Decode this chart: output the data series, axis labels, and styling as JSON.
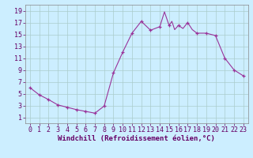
{
  "x": [
    0,
    1,
    2,
    3,
    4,
    5,
    6,
    7,
    8,
    9,
    10,
    11,
    12,
    13,
    14,
    14.5,
    15,
    15.3,
    15.6,
    16,
    16.5,
    17,
    17.5,
    18,
    19,
    20,
    21,
    22,
    23
  ],
  "y": [
    6.0,
    4.8,
    4.0,
    3.1,
    2.7,
    2.3,
    2.0,
    1.7,
    2.9,
    8.5,
    12.0,
    15.2,
    17.2,
    15.7,
    16.3,
    18.8,
    16.5,
    17.2,
    15.8,
    16.5,
    16.0,
    17.0,
    15.8,
    15.2,
    15.2,
    14.8,
    11.0,
    9.0,
    8.0
  ],
  "x_markers": [
    0,
    1,
    2,
    3,
    4,
    5,
    6,
    7,
    8,
    9,
    10,
    11,
    12,
    13,
    14,
    15,
    16,
    17,
    18,
    19,
    20,
    21,
    22,
    23
  ],
  "y_markers": [
    6.0,
    4.8,
    4.0,
    3.1,
    2.7,
    2.3,
    2.0,
    1.7,
    2.9,
    8.5,
    12.0,
    15.2,
    17.2,
    15.7,
    16.3,
    16.5,
    16.5,
    17.0,
    15.2,
    15.2,
    14.8,
    11.0,
    9.0,
    8.0
  ],
  "line_color": "#993399",
  "marker": "+",
  "marker_size": 3.5,
  "bg_color": "#cceeff",
  "grid_color": "#aacccc",
  "xlabel": "Windchill (Refroidissement éolien,°C)",
  "xlabel_fontsize": 6.5,
  "tick_fontsize": 6.0,
  "ylim": [
    0,
    20
  ],
  "xlim": [
    -0.5,
    23.5
  ],
  "yticks": [
    1,
    3,
    5,
    7,
    9,
    11,
    13,
    15,
    17,
    19
  ],
  "xticks": [
    0,
    1,
    2,
    3,
    4,
    5,
    6,
    7,
    8,
    9,
    10,
    11,
    12,
    13,
    14,
    15,
    16,
    17,
    18,
    19,
    20,
    21,
    22,
    23
  ]
}
